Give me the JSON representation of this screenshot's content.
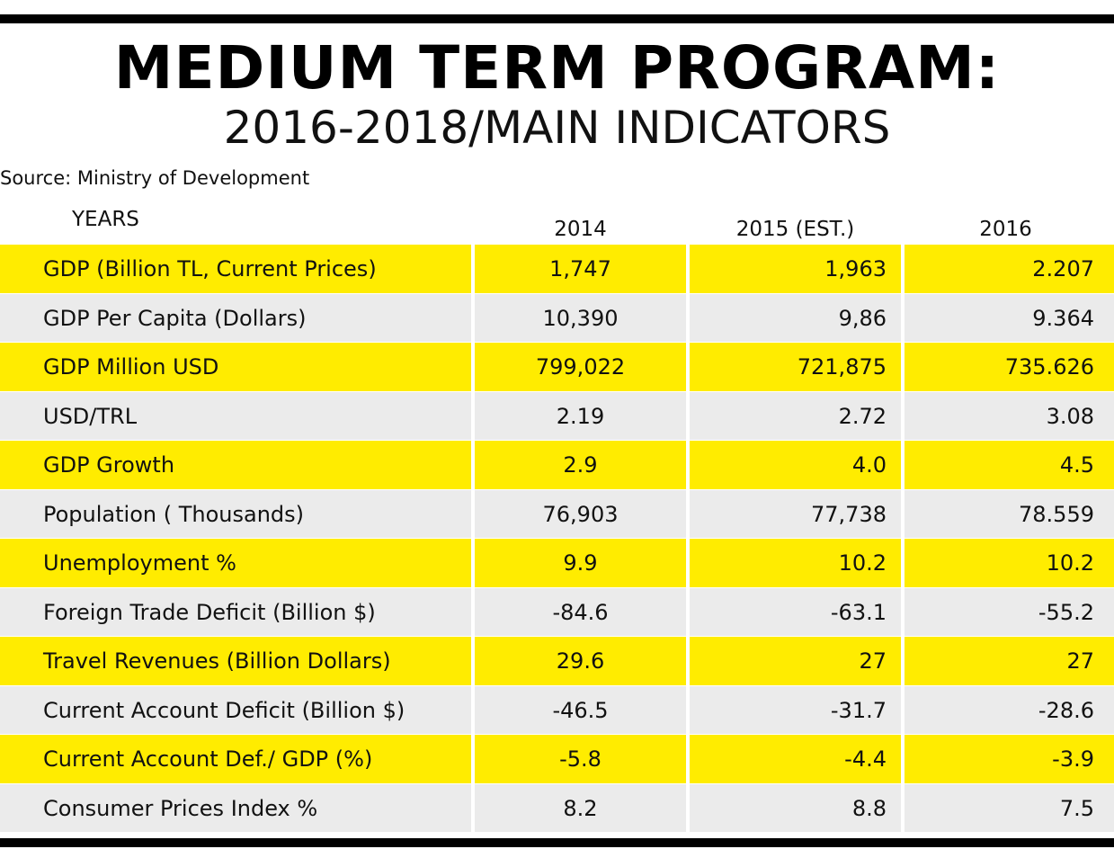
{
  "title": "MEDIUM TERM PROGRAM:",
  "subtitle": "2016-2018/MAIN INDICATORS",
  "source": "Source: Ministry of Development",
  "chart_data": {
    "type": "table",
    "title": "MEDIUM TERM PROGRAM:",
    "subtitle": "2016-2018/MAIN INDICATORS",
    "columns": [
      "YEARS",
      "2014",
      "2015 (EST.)",
      "2016"
    ],
    "rows": [
      {
        "label": "GDP (Billion TL, Current Prices)",
        "values": [
          "1,747",
          "1,963",
          "2.207"
        ]
      },
      {
        "label": "GDP Per Capita (Dollars)",
        "values": [
          "10,390",
          "9,86",
          "9.364"
        ]
      },
      {
        "label": "GDP Million USD",
        "values": [
          "799,022",
          "721,875",
          "735.626"
        ]
      },
      {
        "label": "USD/TRL",
        "values": [
          "2.19",
          "2.72",
          "3.08"
        ]
      },
      {
        "label": "GDP Growth",
        "values": [
          "2.9",
          "4.0",
          "4.5"
        ]
      },
      {
        "label": "Population ( Thousands)",
        "values": [
          "76,903",
          "77,738",
          "78.559"
        ]
      },
      {
        "label": "Unemployment %",
        "values": [
          "9.9",
          "10.2",
          "10.2"
        ]
      },
      {
        "label": "Foreign Trade Deficit  (Billion $)",
        "values": [
          "-84.6",
          "-63.1",
          "-55.2"
        ]
      },
      {
        "label": "Travel Revenues (Billion Dollars)",
        "values": [
          "29.6",
          "27",
          "27"
        ]
      },
      {
        "label": "Current Account Deficit (Billion $)",
        "values": [
          "-46.5",
          "-31.7",
          "-28.6"
        ]
      },
      {
        "label": "Current Account Def./ GDP (%)",
        "values": [
          "-5.8",
          "-4.4",
          "-3.9"
        ]
      },
      {
        "label": "Consumer Prices Index %",
        "values": [
          "8.2",
          "8.8",
          "7.5"
        ]
      }
    ]
  },
  "colors": {
    "highlight_row": "#ffec00",
    "alt_row": "#ebebeb",
    "rule": "#000000"
  }
}
